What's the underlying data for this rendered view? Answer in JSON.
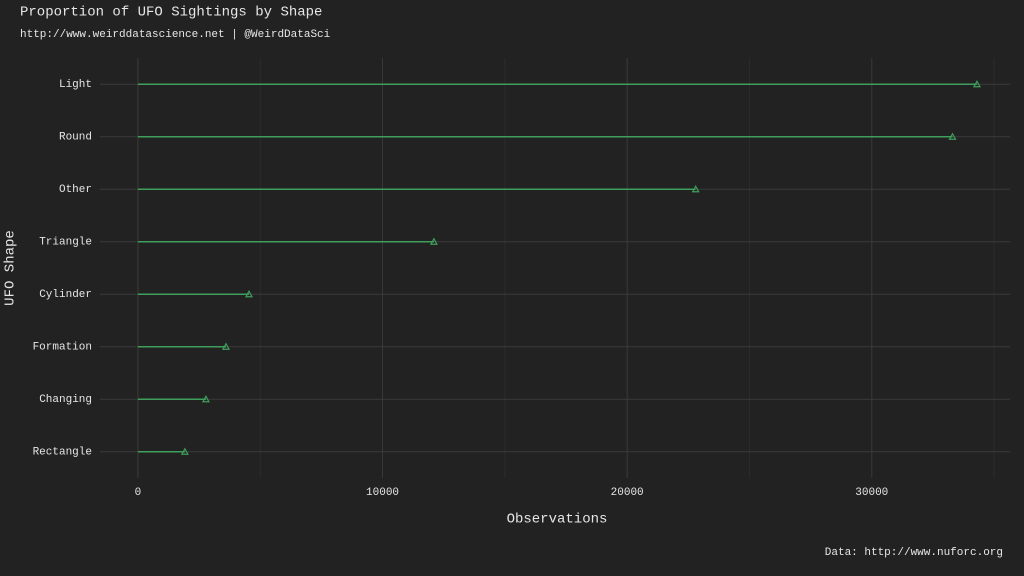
{
  "chart_data": {
    "type": "lollipop",
    "title": "Proportion of UFO Sightings by Shape",
    "subtitle": "http://www.weirddatascience.net | @WeirdDataSci",
    "caption": "Data: http://www.nuforc.org",
    "x_label": "Observations",
    "y_label": "UFO Shape",
    "categories": [
      "Light",
      "Round",
      "Other",
      "Triangle",
      "Cylinder",
      "Formation",
      "Changing",
      "Rectangle"
    ],
    "values": [
      34300,
      33300,
      22800,
      12100,
      4540,
      3600,
      2780,
      1920
    ],
    "color": "#3f9e5c",
    "xlim": [
      -1550,
      35650
    ],
    "xticks": [
      0,
      10000,
      20000,
      30000
    ],
    "x_minor_ticks": [
      5000,
      15000,
      25000,
      35000
    ],
    "grid": true
  }
}
